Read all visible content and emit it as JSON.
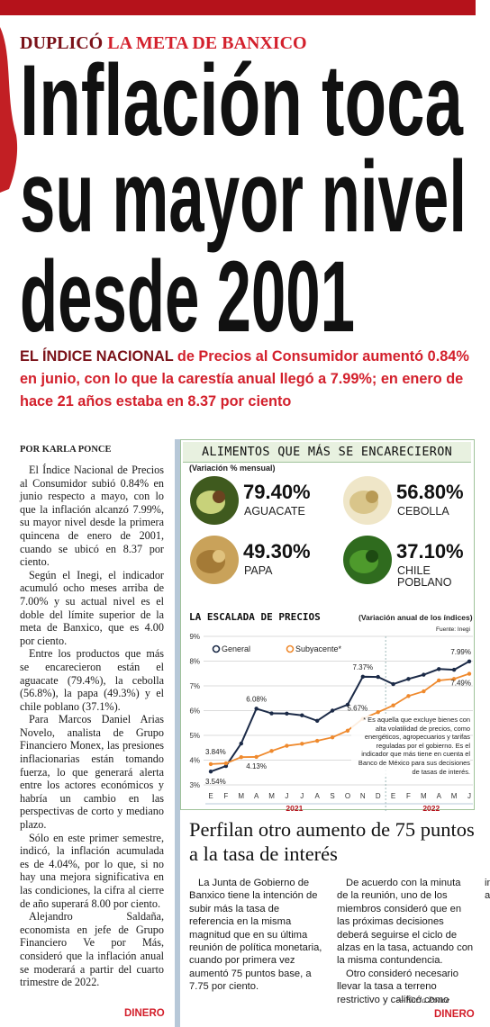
{
  "kicker": {
    "lead": "DUPLICÓ",
    "rest": "LA META DE BANXICO"
  },
  "headline": [
    "Inflación toca",
    "su mayor nivel",
    "desde 2001"
  ],
  "deck": {
    "lead": "EL ÍNDICE NACIONAL",
    "rest": "de Precios al Consumidor aumentó 0.84% en junio, con lo que la carestía anual llegó a 7.99%; en enero de hace 21 años estaba en 8.37 por ciento"
  },
  "byline": "POR KARLA PONCE",
  "body": [
    "El Índice Nacional de Precios al Consumidor subió 0.84% en junio respecto a mayo, con lo que la inflación alcanzó 7.99%, su mayor nivel desde la primera quincena de enero de 2001, cuando se ubicó en 8.37 por ciento.",
    "Según el Inegi, el indicador acumuló ocho meses arriba de 7.00% y su actual nivel es el doble del límite superior de la meta de Banxico, que es 4.00 por ciento.",
    "Entre los productos que más se encarecieron están el aguacate (79.4%), la cebolla (56.8%), la papa (49.3%) y el chile poblano (37.1%).",
    "Para Marcos Daniel Arias Novelo, analista de Grupo Financiero Monex, las presiones inflacionarias están tomando fuerza, lo que generará alerta entre los actores económicos y habría un cambio en las perspectivas de corto y mediano plazo.",
    "Sólo en este primer semestre, indicó, la inflación acumulada es de 4.04%, por lo que, si no hay una mejora significativa en las condiciones, la cifra al cierre de año superará 8.00 por ciento.",
    "Alejandro Saldaña, economista en jefe de Grupo Financiero Ve por Más, consideró que la inflación anual se moderará a partir del cuarto trimestre de 2022."
  ],
  "body_section": "DINERO",
  "foods": {
    "title": "ALIMENTOS QUE MÁS SE ENCARECIERON",
    "subtitle": "(Variación % mensual)",
    "items": [
      {
        "value": "79.40%",
        "name": "AGUACATE"
      },
      {
        "value": "56.80%",
        "name": "CEBOLLA"
      },
      {
        "value": "49.30%",
        "name": "PAPA"
      },
      {
        "value": "37.10%",
        "name": "CHILE POBLANO"
      }
    ]
  },
  "chart_data": {
    "type": "line",
    "title": "LA ESCALADA DE PRECIOS",
    "subtitle": "(Variación anual de los índices)",
    "source": "Fuente: Inegi",
    "categories": [
      "E",
      "F",
      "M",
      "A",
      "M",
      "J",
      "J",
      "A",
      "S",
      "O",
      "N",
      "D",
      "E",
      "F",
      "M",
      "A",
      "M",
      "J"
    ],
    "years": [
      "2021",
      "2022"
    ],
    "series": [
      {
        "name": "General",
        "color": "#1b2a47",
        "values": [
          3.54,
          3.76,
          4.67,
          6.08,
          5.89,
          5.88,
          5.81,
          5.59,
          6.0,
          6.24,
          7.37,
          7.36,
          7.07,
          7.28,
          7.45,
          7.68,
          7.65,
          7.99
        ],
        "value_labels": [
          "3.54%",
          null,
          null,
          "6.08%",
          null,
          null,
          null,
          null,
          null,
          null,
          "7.37%",
          null,
          null,
          null,
          null,
          null,
          null,
          "7.99%"
        ]
      },
      {
        "name": "Subyacente*",
        "color": "#ef8a2e",
        "values": [
          3.84,
          3.87,
          4.12,
          4.13,
          4.37,
          4.58,
          4.66,
          4.78,
          4.92,
          5.19,
          5.67,
          5.94,
          6.21,
          6.59,
          6.78,
          7.22,
          7.28,
          7.49
        ],
        "value_labels": [
          "3.84%",
          null,
          null,
          "4.13%",
          null,
          null,
          null,
          null,
          null,
          null,
          "5.67%",
          null,
          null,
          null,
          null,
          null,
          null,
          "7.49%"
        ]
      }
    ],
    "ylim": [
      3,
      9
    ],
    "yticks": [
      {
        "value": 3,
        "label": "3%"
      },
      {
        "value": 4,
        "label": "4%"
      },
      {
        "value": 5,
        "label": "5%"
      },
      {
        "value": 6,
        "label": "6%"
      },
      {
        "value": 7,
        "label": "7%"
      },
      {
        "value": 8,
        "label": "8%"
      },
      {
        "value": 9,
        "label": "9%"
      }
    ],
    "grid": true,
    "note": "* Es aquella que excluye bienes con alta volatilidad de precios, como energéticos, agropecuarios y tarifas reguladas por el gobierno. Es el indicador que más tiene en cuenta el Banco de México para sus decisiones de tasas de interés."
  },
  "article2": {
    "title": "Perfilan otro aumento de 75 puntos a la tasa de interés",
    "body": [
      "La Junta de Gobierno de Banxico tiene la intención de subir más la tasa de referencia en la misma magnitud que en su última reunión de política monetaria, cuando por primera vez aumentó 75 puntos base, a 7.75 por ciento.",
      "De acuerdo con la minuta de la reunión, uno de los miembros consideró que en las próximas decisiones deberá seguirse el ciclo de alzas en la tasa, actuando con la misma contundencia.",
      "Otro consideró necesario llevar la tasa a terreno restrictivo y calificó como impostergable la decisión de aumentar el ritmo de ajuste."
    ],
    "signature": "— Karla Ponce",
    "section": "DINERO"
  }
}
